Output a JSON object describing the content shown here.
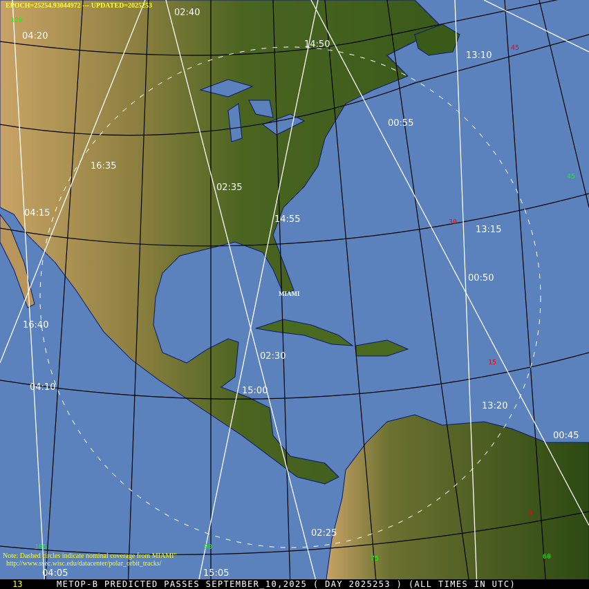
{
  "header": {
    "epoch": "EPOCH=25254.93044972 --- UPDATED=2025253"
  },
  "station": {
    "name": "MIAMI"
  },
  "note": {
    "line1": "Note: Dashed circles indicate nominal coverage from MIAMI\"",
    "line2": "http://www.ssec.wisc.edu/datacenter/polar_orbit_tracks/"
  },
  "footer": {
    "frame_number": "13",
    "title": "METOP-B PREDICTED PASSES SEPTEMBER_10,2025 ( DAY 2025253 ) (ALL TIMES IN UTC)"
  },
  "pass_times": [
    "02:40",
    "02:35",
    "02:30",
    "02:25",
    "16:35",
    "16:40",
    "14:50",
    "14:55",
    "15:00",
    "15:05",
    "04:20",
    "04:15",
    "04:10",
    "04:05",
    "13:10",
    "13:15",
    "13:20",
    "00:55",
    "00:50",
    "00:45"
  ],
  "longitude_labels": [
    "120",
    "105",
    "90",
    "75",
    "60",
    "45"
  ],
  "latitude_labels": [
    "45",
    "30",
    "15",
    "0"
  ],
  "colors": {
    "ocean": "#5b82bd",
    "land": "#3d5a1a",
    "track": "#ffffff",
    "longitude_label": "#00ff00",
    "latitude_label": "#ff0000",
    "annotation": "#ffff33"
  }
}
